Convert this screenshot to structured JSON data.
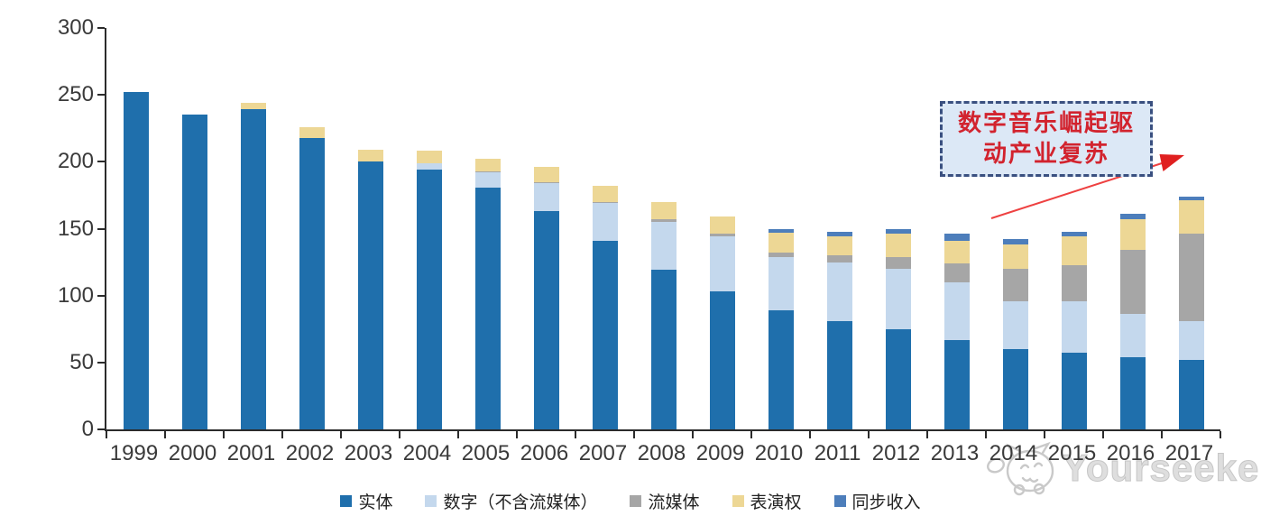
{
  "chart_data": {
    "type": "bar",
    "stacked": true,
    "title": "",
    "xlabel": "",
    "ylabel": "",
    "categories": [
      "1999",
      "2000",
      "2001",
      "2002",
      "2003",
      "2004",
      "2005",
      "2006",
      "2007",
      "2008",
      "2009",
      "2010",
      "2011",
      "2012",
      "2013",
      "2014",
      "2015",
      "2016",
      "2017"
    ],
    "series": [
      {
        "name": "实体",
        "color": "#1F6FAC",
        "values": [
          252,
          235,
          239,
          218,
          200,
          194,
          181,
          163,
          141,
          119,
          103,
          89,
          81,
          75,
          67,
          60,
          57,
          54,
          52
        ]
      },
      {
        "name": "数字（不含流媒体）",
        "color": "#C4D8ED",
        "values": [
          0,
          0,
          0,
          0,
          0,
          5,
          11,
          21,
          28,
          36,
          41,
          40,
          44,
          45,
          43,
          36,
          39,
          32,
          29
        ]
      },
      {
        "name": "流媒体",
        "color": "#A6A6A6",
        "values": [
          0,
          0,
          0,
          0,
          0,
          0,
          1,
          1,
          1,
          2,
          2,
          3,
          5,
          9,
          14,
          24,
          27,
          48,
          65
        ]
      },
      {
        "name": "表演权",
        "color": "#EDD795",
        "values": [
          0,
          0,
          5,
          8,
          9,
          9,
          9,
          11,
          12,
          13,
          13,
          15,
          14,
          17,
          17,
          18,
          21,
          23,
          25
        ]
      },
      {
        "name": "同步收入",
        "color": "#4D7EBB",
        "values": [
          0,
          0,
          0,
          0,
          0,
          0,
          0,
          0,
          0,
          0,
          0,
          3,
          4,
          4,
          5,
          4,
          4,
          4,
          3
        ]
      }
    ],
    "ylim": [
      0,
      300
    ],
    "yticks": [
      0,
      50,
      100,
      150,
      200,
      250,
      300
    ],
    "grid": false,
    "legend_position": "bottom"
  },
  "annotation": {
    "full_text": "数字音乐崛起驱动产业复苏",
    "lines": [
      "数字音乐崛起驱",
      "动产业复苏"
    ],
    "box_fill": "#DCE8F6",
    "border_color": "#3A5080",
    "text_color": "#D2232E",
    "arrow_color": "#EE4141",
    "arrowhead_color": "#E02020"
  },
  "watermark": {
    "text": "Yourseeker"
  }
}
